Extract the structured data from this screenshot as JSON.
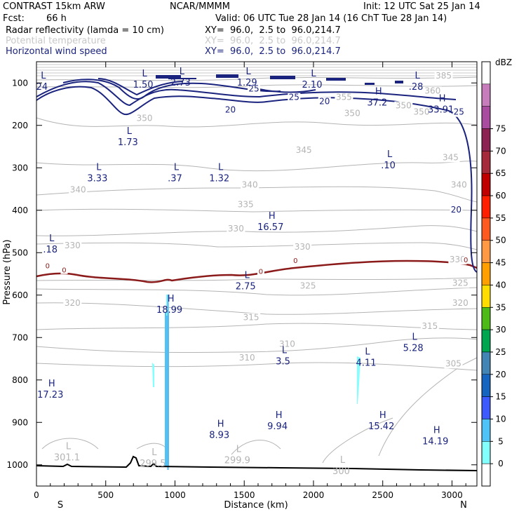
{
  "header": {
    "title": "CONTRAST 15km ARW",
    "org": "NCAR/MMMM",
    "init": "Init: 12 UTC Sat 25 Jan 14",
    "fcst_label": "Fcst:",
    "fcst_value": "66 h",
    "valid": "Valid: 06 UTC Tue 28 Jan 14 (16 ChT Tue 28 Jan 14)",
    "fields": [
      {
        "name": "Radar reflectivity (lamda = 10 cm)",
        "xy": "XY=  96.0,  2.5 to  96.0,214.7",
        "color": "#000000"
      },
      {
        "name": "Potential temperature",
        "xy": "XY=  96.0,  2.5 to  96.0,214.7",
        "color": "#c8c8c8"
      },
      {
        "name": "Horizontal wind speed",
        "xy": "XY=  96.0,  2.5 to  96.0,214.7",
        "color": "#1a237e"
      }
    ]
  },
  "chart_data": {
    "type": "cross-section",
    "xlabel": "Distance (km)",
    "ylabel": "Pressure (hPa)",
    "xlim": [
      0,
      3180
    ],
    "ylim": [
      1050,
      50
    ],
    "xticks": [
      0,
      500,
      1000,
      1500,
      2000,
      2500,
      3000
    ],
    "yticks": [
      100,
      200,
      300,
      400,
      500,
      600,
      700,
      800,
      900,
      1000
    ],
    "direction_left": "S",
    "direction_right": "N",
    "colorbar": {
      "title": "dBZ",
      "ticks": [
        "0",
        "5",
        "10",
        "15",
        "20",
        "25",
        "30",
        "35",
        "40",
        "45",
        "50",
        "55",
        "60",
        "65",
        "70",
        "75"
      ],
      "colors": [
        "#ffffff",
        "#84ffff",
        "#4fc3f7",
        "#3d5afe",
        "#1565c0",
        "#4285b4",
        "#00a64f",
        "#4cbb17",
        "#ffdd00",
        "#ffa000",
        "#ff9944",
        "#ff5a1f",
        "#ff1f00",
        "#c00000",
        "#a52a3a",
        "#8b2252",
        "#a94ca0",
        "#c77dbb",
        "#ffffff"
      ]
    },
    "pressure_extremes": [
      {
        "type": "L",
        "value": "24",
        "x": 40,
        "p": 95
      },
      {
        "type": "L",
        "value": "1.50",
        "x": 770,
        "p": 90
      },
      {
        "type": "L",
        "value": "2.73",
        "x": 1040,
        "p": 85
      },
      {
        "type": "L",
        "value": "1.29",
        "x": 1520,
        "p": 85
      },
      {
        "type": "L",
        "value": "2.10",
        "x": 1990,
        "p": 90
      },
      {
        "type": "L",
        "value": ".28",
        "x": 2740,
        "p": 95
      },
      {
        "type": "H",
        "value": "37.2",
        "x": 2460,
        "p": 132
      },
      {
        "type": "H",
        "value": "33.91",
        "x": 2920,
        "p": 148
      },
      {
        "type": "L",
        "value": "1.73",
        "x": 660,
        "p": 225
      },
      {
        "type": "L",
        "value": "3.33",
        "x": 440,
        "p": 310
      },
      {
        "type": "L",
        "value": ".37",
        "x": 1000,
        "p": 310
      },
      {
        "type": "L",
        "value": "1.32",
        "x": 1320,
        "p": 310
      },
      {
        "type": "L",
        "value": ".10",
        "x": 2540,
        "p": 280
      },
      {
        "type": "H",
        "value": "16.57",
        "x": 1690,
        "p": 425
      },
      {
        "type": "L",
        "value": ".18",
        "x": 100,
        "p": 478
      },
      {
        "type": "L",
        "value": "2.75",
        "x": 1510,
        "p": 565
      },
      {
        "type": "H",
        "value": "18.99",
        "x": 960,
        "p": 620
      },
      {
        "type": "L",
        "value": "5.28",
        "x": 2720,
        "p": 710
      },
      {
        "type": "L",
        "value": "3.5",
        "x": 1780,
        "p": 742
      },
      {
        "type": "L",
        "value": "4.11",
        "x": 2380,
        "p": 745
      },
      {
        "type": "H",
        "value": "17.23",
        "x": 100,
        "p": 820
      },
      {
        "type": "H",
        "value": "9.94",
        "x": 1740,
        "p": 895
      },
      {
        "type": "H",
        "value": "15.42",
        "x": 2490,
        "p": 895
      },
      {
        "type": "H",
        "value": "8.93",
        "x": 1320,
        "p": 915
      },
      {
        "type": "H",
        "value": "14.19",
        "x": 2880,
        "p": 930
      },
      {
        "type": "L",
        "value": "301.1",
        "x": 220,
        "p": 968
      },
      {
        "type": "L",
        "value": "299.5",
        "x": 840,
        "p": 982
      },
      {
        "type": "L",
        "value": "299.9",
        "x": 1450,
        "p": 975
      },
      {
        "type": "L",
        "value": "300",
        "x": 2200,
        "p": 1000
      }
    ],
    "theta_labels": [
      {
        "value": "385",
        "x": 2940,
        "p": 90
      },
      {
        "value": "360",
        "x": 2860,
        "p": 125
      },
      {
        "value": "355",
        "x": 2220,
        "p": 140
      },
      {
        "value": "350",
        "x": 2650,
        "p": 160
      },
      {
        "value": "350",
        "x": 2780,
        "p": 175
      },
      {
        "value": "350",
        "x": 780,
        "p": 190
      },
      {
        "value": "350",
        "x": 2280,
        "p": 178
      },
      {
        "value": "345",
        "x": 1930,
        "p": 265
      },
      {
        "value": "345",
        "x": 2990,
        "p": 282
      },
      {
        "value": "340",
        "x": 300,
        "p": 358
      },
      {
        "value": "340",
        "x": 1540,
        "p": 347
      },
      {
        "value": "340",
        "x": 3050,
        "p": 347
      },
      {
        "value": "335",
        "x": 1510,
        "p": 393
      },
      {
        "value": "330",
        "x": 1440,
        "p": 450
      },
      {
        "value": "330",
        "x": 260,
        "p": 490
      },
      {
        "value": "330",
        "x": 1920,
        "p": 493
      },
      {
        "value": "330",
        "x": 3040,
        "p": 523
      },
      {
        "value": "325",
        "x": 1960,
        "p": 585
      },
      {
        "value": "325",
        "x": 3060,
        "p": 578
      },
      {
        "value": "320",
        "x": 260,
        "p": 625
      },
      {
        "value": "320",
        "x": 3060,
        "p": 625
      },
      {
        "value": "315",
        "x": 1550,
        "p": 659
      },
      {
        "value": "315",
        "x": 2840,
        "p": 680
      },
      {
        "value": "310",
        "x": 1810,
        "p": 722
      },
      {
        "value": "310",
        "x": 1520,
        "p": 754
      },
      {
        "value": "305",
        "x": 3010,
        "p": 768
      }
    ],
    "wind_labels": [
      {
        "value": "25",
        "x": 1570,
        "p": 120
      },
      {
        "value": "25",
        "x": 1860,
        "p": 140
      },
      {
        "value": "20",
        "x": 2080,
        "p": 150
      },
      {
        "value": "20",
        "x": 1400,
        "p": 170
      },
      {
        "value": "25",
        "x": 3050,
        "p": 175
      },
      {
        "value": "20",
        "x": 3030,
        "p": 405
      }
    ],
    "zero_contour_labels": [
      {
        "value": "0",
        "x": 80,
        "p": 537
      },
      {
        "value": "0",
        "x": 200,
        "p": 547
      },
      {
        "value": "0",
        "x": 1620,
        "p": 550
      },
      {
        "value": "0",
        "x": 1870,
        "p": 524
      },
      {
        "value": "0",
        "x": 3100,
        "p": 523
      }
    ]
  }
}
